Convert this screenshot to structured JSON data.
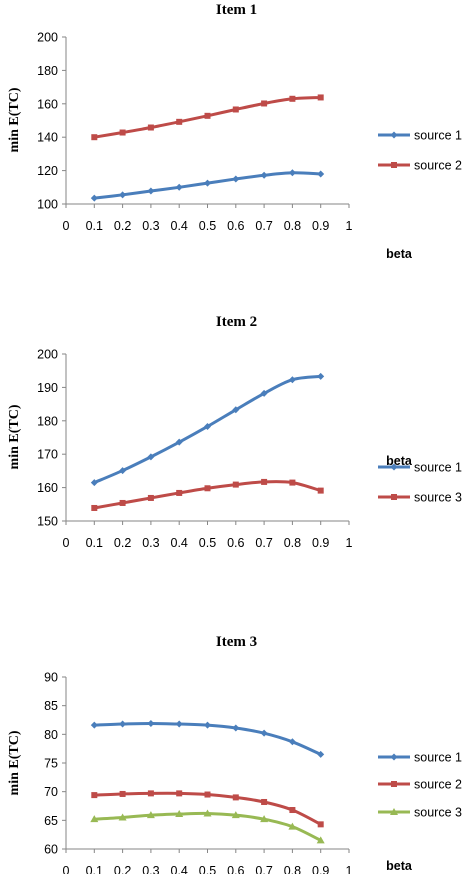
{
  "chart_data": [
    {
      "type": "line",
      "title": "Item 1",
      "xlabel": "beta",
      "ylabel": "min E(TC)",
      "xlim": [
        0,
        1
      ],
      "ylim": [
        100,
        200
      ],
      "xticks": [
        "0",
        "0.1",
        "0.2",
        "0.3",
        "0.4",
        "0.5",
        "0.6",
        "0.7",
        "0.8",
        "0.9",
        "1"
      ],
      "yticks": [
        "100",
        "120",
        "140",
        "160",
        "180",
        "200"
      ],
      "x": [
        0.1,
        0.2,
        0.3,
        0.4,
        0.5,
        0.6,
        0.7,
        0.8,
        0.9
      ],
      "legend": "right",
      "grid": false,
      "series": [
        {
          "name": "source 1",
          "color": "#4a7ebb",
          "marker": "diamond",
          "values": [
            103.5,
            105.5,
            107.8,
            110.0,
            112.5,
            115.0,
            117.2,
            118.7,
            118.0
          ]
        },
        {
          "name": "source 2",
          "color": "#be4b48",
          "marker": "square",
          "values": [
            140.0,
            142.8,
            145.8,
            149.2,
            152.8,
            156.6,
            160.2,
            163.0,
            163.8
          ]
        }
      ]
    },
    {
      "type": "line",
      "title": "Item 2",
      "xlabel": "beta",
      "ylabel": "min E(TC)",
      "xlim": [
        0,
        1
      ],
      "ylim": [
        150,
        200
      ],
      "xticks": [
        "0",
        "0.1",
        "0.2",
        "0.3",
        "0.4",
        "0.5",
        "0.6",
        "0.7",
        "0.8",
        "0.9",
        "1"
      ],
      "yticks": [
        "150",
        "160",
        "170",
        "180",
        "190",
        "200"
      ],
      "x": [
        0.1,
        0.2,
        0.3,
        0.4,
        0.5,
        0.6,
        0.7,
        0.8,
        0.9
      ],
      "legend": "right",
      "grid": false,
      "series": [
        {
          "name": "source 1",
          "color": "#4a7ebb",
          "marker": "diamond",
          "values": [
            161.5,
            165.1,
            169.2,
            173.6,
            178.3,
            183.3,
            188.2,
            192.3,
            193.3
          ]
        },
        {
          "name": "source 3",
          "color": "#be4b48",
          "marker": "square",
          "values": [
            153.9,
            155.4,
            156.9,
            158.4,
            159.8,
            160.9,
            161.7,
            161.5,
            159.1
          ]
        }
      ]
    },
    {
      "type": "line",
      "title": "Item 3",
      "xlabel": "beta",
      "ylabel": "min E(TC)",
      "xlim": [
        0,
        1
      ],
      "ylim": [
        60,
        90
      ],
      "xticks": [
        "0",
        "0.1",
        "0.2",
        "0.3",
        "0.4",
        "0.5",
        "0.6",
        "0.7",
        "0.8",
        "0.9",
        "1"
      ],
      "yticks": [
        "60",
        "65",
        "70",
        "75",
        "80",
        "85",
        "90"
      ],
      "x": [
        0.1,
        0.2,
        0.3,
        0.4,
        0.5,
        0.6,
        0.7,
        0.8,
        0.9
      ],
      "legend": "right",
      "grid": false,
      "series": [
        {
          "name": "source 1",
          "color": "#4a7ebb",
          "marker": "diamond",
          "values": [
            81.6,
            81.8,
            81.9,
            81.8,
            81.6,
            81.1,
            80.2,
            78.7,
            76.5
          ]
        },
        {
          "name": "source 2",
          "color": "#be4b48",
          "marker": "square",
          "values": [
            69.4,
            69.6,
            69.7,
            69.7,
            69.5,
            69.0,
            68.2,
            66.8,
            64.3
          ]
        },
        {
          "name": "source 3",
          "color": "#98b954",
          "marker": "triangle",
          "values": [
            65.2,
            65.5,
            65.9,
            66.1,
            66.2,
            65.9,
            65.2,
            63.9,
            61.5
          ]
        }
      ]
    }
  ]
}
